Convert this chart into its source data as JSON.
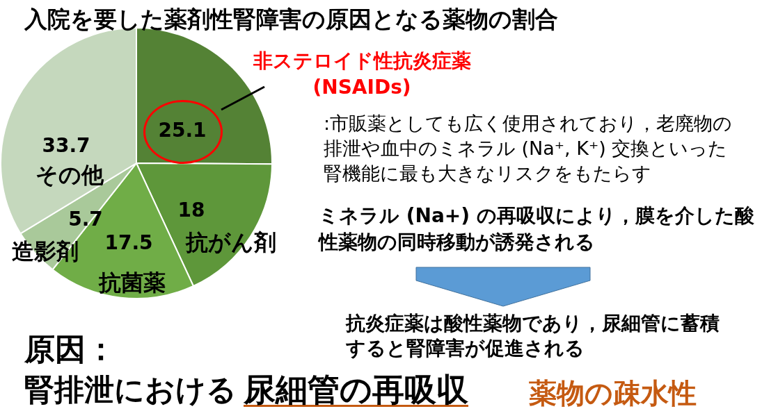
{
  "chart_data": {
    "type": "pie",
    "title": "入院を要した薬剤性腎障害の原因となる薬物の割合",
    "categories": [
      "非ステロイド性抗炎症薬 (NSAIDs)",
      "抗がん剤",
      "抗菌薬",
      "造影剤",
      "その他"
    ],
    "values": [
      25.1,
      18,
      17.5,
      5.7,
      33.7
    ],
    "colors": [
      "#548235",
      "#5e973a",
      "#70ad47",
      "#a9c99a",
      "#c5d8bd"
    ],
    "data_labels": true,
    "legend": false,
    "annotations": [
      ":市販薬としても広く使用されており，老廃物の排泄や血中のミネラル (Na⁺, K⁺) 交換といった腎機能に最も大きなリスクをもたらす",
      "ミネラル (Na+) の再吸収により，膜を介した酸性薬物の同時移動が誘発される",
      "抗炎症薬は酸性薬物であり，尿細管に蓄積すると腎障害が促進される",
      "原因：",
      "腎排泄における",
      "尿細管の再吸収",
      "薬物の疎水性"
    ]
  }
}
